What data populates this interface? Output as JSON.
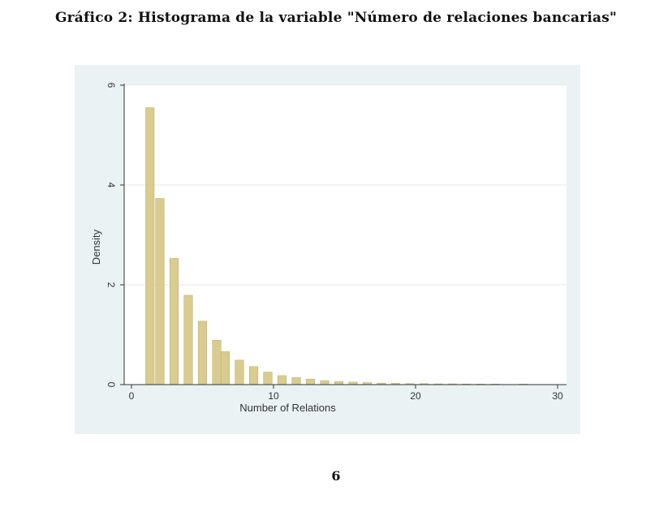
{
  "page": {
    "title": "Gráfico 2: Histograma de la variable \"Número de relaciones bancarias\"",
    "page_number": "6"
  },
  "colors": {
    "figure_background": "#eaf2f3",
    "plot_background": "#ffffff",
    "bar_fill": "#d9cc8e",
    "bar_stroke": "#bfb072",
    "gridline": "#e6eef0",
    "axis": "#333333"
  },
  "chart_data": {
    "type": "bar",
    "title": "",
    "xlabel": "Number of Relations",
    "ylabel": "Density",
    "xlim": [
      0,
      30
    ],
    "ylim": [
      0,
      6
    ],
    "xticks": [
      0,
      10,
      20,
      30
    ],
    "yticks": [
      0,
      2,
      4,
      6
    ],
    "grid": "horizontal",
    "bar_width": 0.6,
    "x": [
      1.3,
      2.0,
      3.0,
      4.0,
      5.0,
      6.0,
      6.6,
      7.6,
      8.6,
      9.6,
      10.6,
      11.6,
      12.6,
      13.6,
      14.6,
      15.6,
      16.6,
      17.6,
      18.6,
      19.6,
      20.6,
      21.6,
      22.6,
      23.6,
      24.6,
      25.6,
      27.6
    ],
    "values": [
      5.55,
      3.73,
      2.53,
      1.79,
      1.27,
      0.89,
      0.66,
      0.49,
      0.36,
      0.25,
      0.18,
      0.14,
      0.11,
      0.08,
      0.06,
      0.05,
      0.04,
      0.03,
      0.025,
      0.02,
      0.02,
      0.015,
      0.015,
      0.012,
      0.01,
      0.01,
      0.01
    ]
  }
}
